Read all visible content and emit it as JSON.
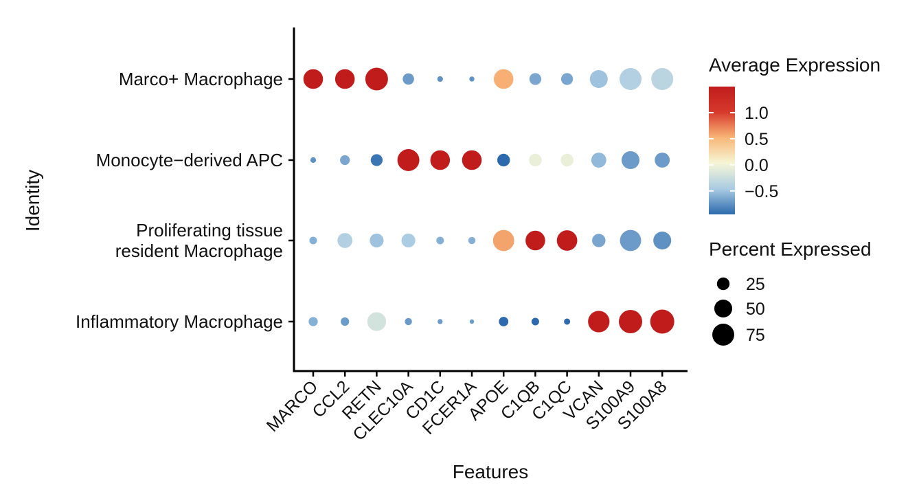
{
  "chart_data": {
    "type": "dotplot",
    "xlabel": "Features",
    "ylabel": "Identity",
    "features": [
      "MARCO",
      "CCL2",
      "RETN",
      "CLEC10A",
      "CD1C",
      "FCER1A",
      "APOE",
      "C1QB",
      "C1QC",
      "VCAN",
      "S100A9",
      "S100A8"
    ],
    "identities": [
      "Marco+ Macrophage",
      "Monocyte−derived APC",
      "Proliferating tissue\nresident Macrophage",
      "Inflammatory Macrophage"
    ],
    "avg_expression": [
      [
        1.5,
        1.5,
        1.5,
        -0.7,
        -0.75,
        -0.75,
        0.55,
        -0.65,
        -0.65,
        -0.5,
        -0.4,
        -0.35
      ],
      [
        -0.75,
        -0.65,
        -0.9,
        1.5,
        1.5,
        1.5,
        -0.95,
        -0.05,
        -0.05,
        -0.55,
        -0.7,
        -0.7
      ],
      [
        -0.6,
        -0.4,
        -0.5,
        -0.45,
        -0.6,
        -0.6,
        0.6,
        1.5,
        1.5,
        -0.65,
        -0.7,
        -0.75
      ],
      [
        -0.6,
        -0.7,
        -0.2,
        -0.7,
        -0.7,
        -0.7,
        -0.95,
        -0.95,
        -0.95,
        1.5,
        1.5,
        1.5
      ]
    ],
    "pct_expressed": [
      [
        60,
        60,
        80,
        20,
        5,
        4,
        60,
        22,
        22,
        50,
        75,
        75
      ],
      [
        5,
        15,
        22,
        75,
        60,
        60,
        25,
        25,
        25,
        35,
        50,
        35
      ],
      [
        9,
        35,
        30,
        30,
        9,
        8,
        70,
        60,
        65,
        28,
        70,
        50
      ],
      [
        13,
        11,
        55,
        8,
        4,
        3,
        14,
        9,
        6,
        72,
        85,
        90
      ]
    ],
    "colorbar": {
      "title": "Average Expression",
      "range": [
        -0.95,
        1.5
      ],
      "ticks": [
        1.0,
        0.5,
        0.0,
        -0.5
      ],
      "tick_labels": [
        "1.0",
        "0.5",
        "0.0",
        "−0.5"
      ],
      "colors": [
        "#2c6aad",
        "#a9cbe3",
        "#f6f6d6",
        "#f9b778",
        "#d73a2c",
        "#c01c1c"
      ]
    },
    "size_legend": {
      "title": "Percent Expressed",
      "values": [
        25,
        50,
        75
      ],
      "labels": [
        "25",
        "50",
        "75"
      ]
    },
    "grid": false,
    "legend_position": "right"
  }
}
